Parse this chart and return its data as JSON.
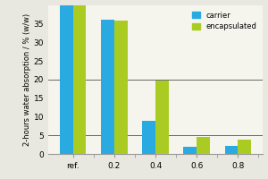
{
  "categories": [
    "ref.",
    "0.2",
    "0.4",
    "0.6",
    "0.8"
  ],
  "carrier": [
    40,
    36.2,
    8.8,
    2.0,
    2.2
  ],
  "encapsulated": [
    40,
    35.8,
    19.7,
    4.5,
    3.9
  ],
  "carrier_color": "#29abe2",
  "encapsulated_color": "#aacc22",
  "ylabel": "2-hours water absorption / % (w/w)",
  "ylim": [
    0,
    40
  ],
  "yticks": [
    0,
    5,
    10,
    15,
    20,
    25,
    30,
    35
  ],
  "hlines": [
    5,
    20
  ],
  "legend_carrier": "carrier",
  "legend_encapsulated": "encapsulated",
  "bg_color": "#e8e8e0",
  "plot_bg": "#f5f5ee",
  "bar_width": 0.32
}
